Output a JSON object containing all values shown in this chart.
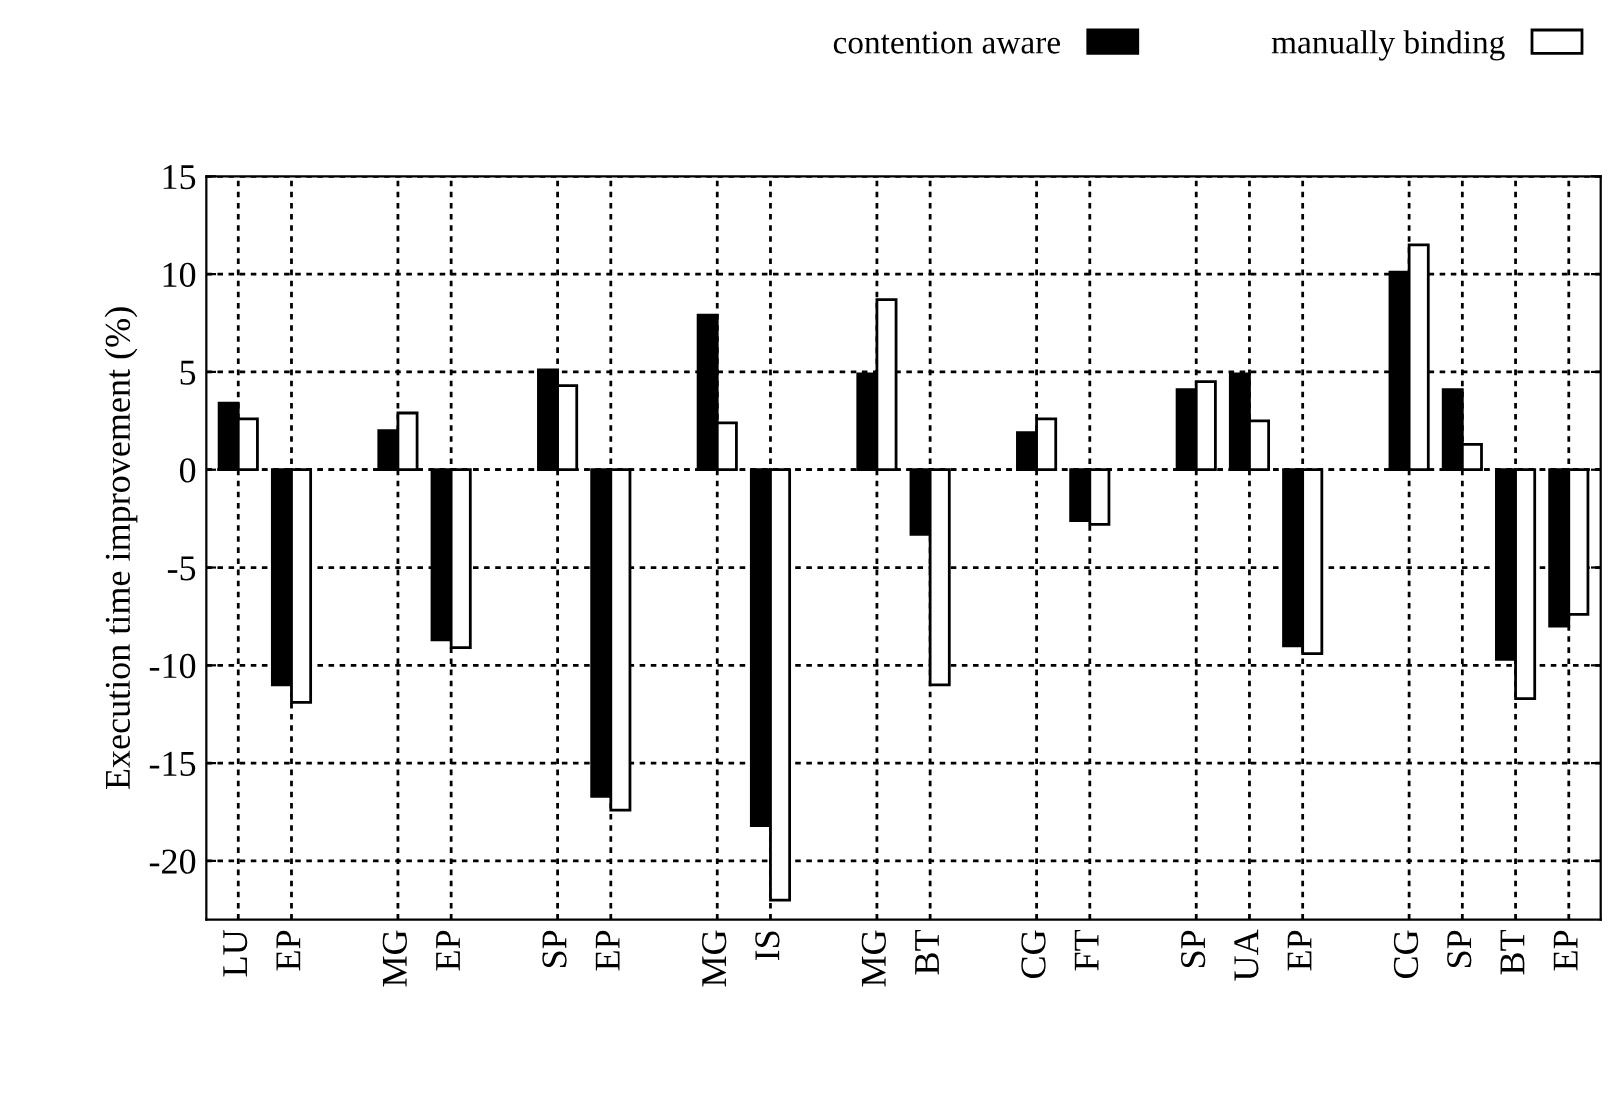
{
  "chart_data": {
    "type": "bar",
    "ylabel": "Execution time improvement (%)",
    "categories": [
      "LU",
      "EP",
      null,
      "MG",
      "EP",
      null,
      "SP",
      "EP",
      null,
      "MG",
      "IS",
      null,
      "MG",
      "BT",
      null,
      "CG",
      "FT",
      null,
      "SP",
      "UA",
      "EP",
      null,
      "CG",
      "SP",
      "BT",
      "EP"
    ],
    "series": [
      {
        "name": "contention aware",
        "color": "#000000",
        "values": [
          3.4,
          -11.0,
          null,
          2.0,
          -8.7,
          null,
          5.1,
          -16.7,
          null,
          7.9,
          -18.2,
          null,
          4.9,
          -3.3,
          null,
          1.9,
          -2.6,
          null,
          4.1,
          4.9,
          -9.0,
          null,
          10.1,
          4.1,
          -9.7,
          -8.0
        ]
      },
      {
        "name": "manually binding",
        "color": "#ffffff",
        "values": [
          2.6,
          -11.9,
          null,
          2.9,
          -9.1,
          null,
          4.3,
          -17.4,
          null,
          2.4,
          -22.0,
          null,
          8.7,
          -11.0,
          null,
          2.6,
          -2.8,
          null,
          4.5,
          2.5,
          -9.4,
          null,
          11.5,
          1.3,
          -11.7,
          -7.4
        ]
      }
    ],
    "ylim": [
      -23,
      15
    ],
    "yticks": [
      -20,
      -15,
      -10,
      -5,
      0,
      5,
      10,
      15
    ],
    "grid": true,
    "legend": "top right"
  }
}
